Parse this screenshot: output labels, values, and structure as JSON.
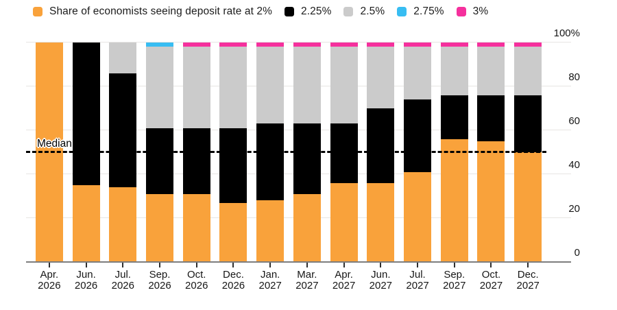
{
  "legend": {
    "items": [
      {
        "label": "Share of economists seeing deposit rate at 2%",
        "color": "#F9A23B"
      },
      {
        "label": "2.25%",
        "color": "#000000"
      },
      {
        "label": "2.5%",
        "color": "#CBCBCB"
      },
      {
        "label": "2.75%",
        "color": "#38BDF2"
      },
      {
        "label": "3%",
        "color": "#F5309D"
      }
    ]
  },
  "chart_data": {
    "type": "bar",
    "stacked": true,
    "title": "Share of economists seeing deposit rate at 2%",
    "categories": [
      [
        "Apr.",
        "2026"
      ],
      [
        "Jun.",
        "2026"
      ],
      [
        "Jul.",
        "2026"
      ],
      [
        "Sep.",
        "2026"
      ],
      [
        "Oct.",
        "2026"
      ],
      [
        "Dec.",
        "2026"
      ],
      [
        "Jan.",
        "2027"
      ],
      [
        "Mar.",
        "2027"
      ],
      [
        "Apr.",
        "2027"
      ],
      [
        "Jun.",
        "2027"
      ],
      [
        "Jul.",
        "2027"
      ],
      [
        "Sep.",
        "2027"
      ],
      [
        "Oct.",
        "2027"
      ],
      [
        "Dec.",
        "2027"
      ]
    ],
    "series": [
      {
        "name": "2%",
        "color": "#F9A23B",
        "values": [
          100,
          35,
          34,
          31,
          31,
          27,
          28,
          31,
          36,
          36,
          41,
          56,
          55,
          50
        ]
      },
      {
        "name": "2.25%",
        "color": "#000000",
        "values": [
          0,
          65,
          52,
          30,
          30,
          34,
          35,
          32,
          27,
          34,
          33,
          20,
          21,
          26
        ]
      },
      {
        "name": "2.5%",
        "color": "#CBCBCB",
        "values": [
          0,
          0,
          14,
          37,
          37,
          37,
          35,
          35,
          35,
          28,
          24,
          22,
          22,
          22
        ]
      },
      {
        "name": "2.75%",
        "color": "#38BDF2",
        "values": [
          0,
          0,
          0,
          2,
          0,
          0,
          0,
          0,
          0,
          0,
          0,
          0,
          0,
          0
        ]
      },
      {
        "name": "3%",
        "color": "#F5309D",
        "values": [
          0,
          0,
          0,
          0,
          2,
          2,
          2,
          2,
          2,
          2,
          2,
          2,
          2,
          2
        ]
      }
    ],
    "ylim": [
      0,
      100
    ],
    "yticks": [
      0,
      20,
      40,
      60,
      80,
      100
    ],
    "ytick_labels": [
      "0",
      "20",
      "40",
      "60",
      "80",
      "100%"
    ],
    "median_line": {
      "label": "Median",
      "value": 50
    },
    "legend_position": "top",
    "grid": "horizontal",
    "y_axis_side": "right"
  }
}
